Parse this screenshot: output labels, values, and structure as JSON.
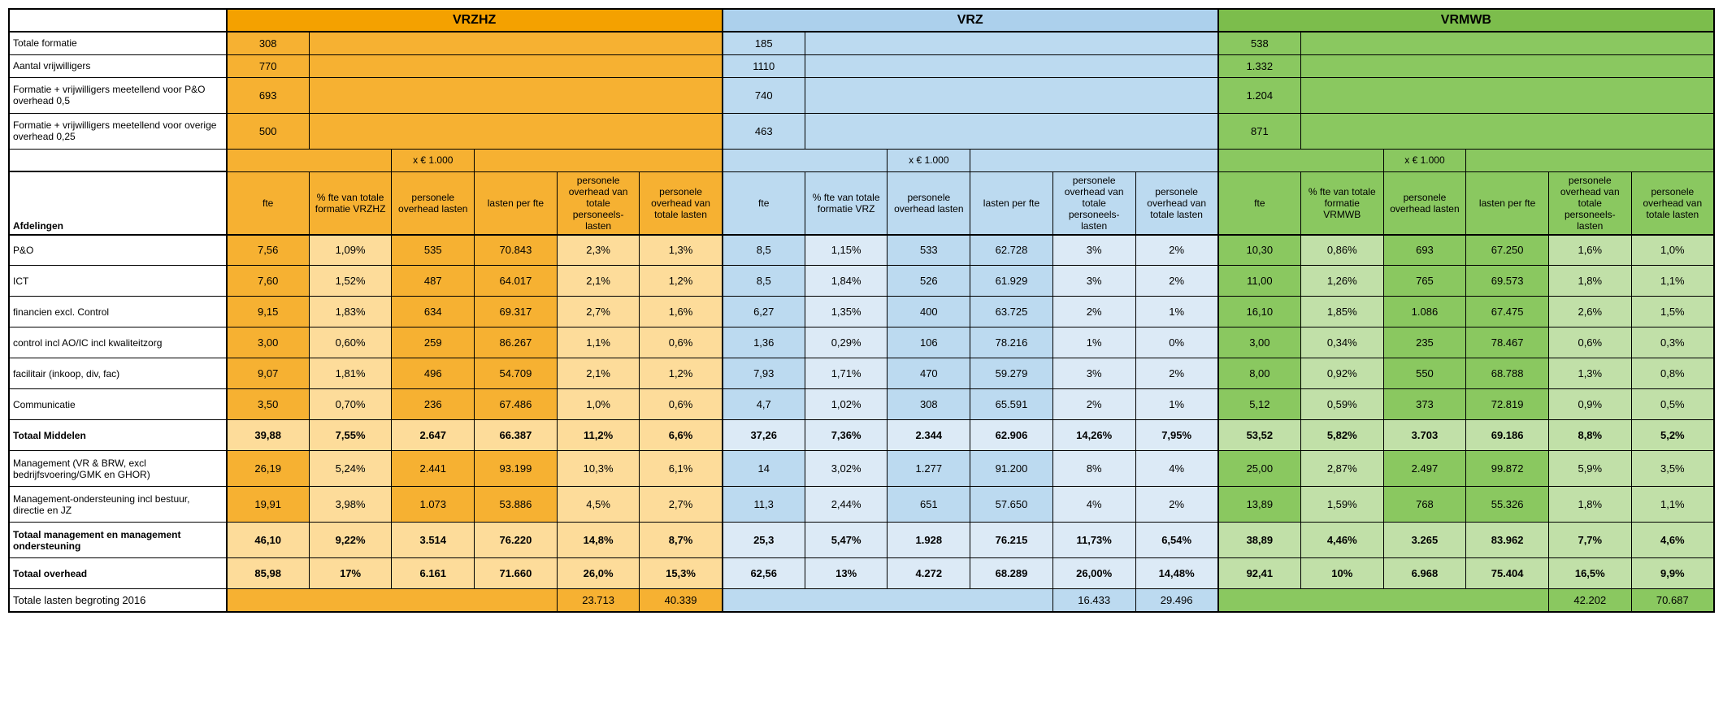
{
  "groups": [
    "VRZHZ",
    "VRZ",
    "VRMWB"
  ],
  "x1000": "x € 1.000",
  "afdelingen": "Afdelingen",
  "topRows": [
    {
      "label": "Totale formatie",
      "vals": [
        "308",
        "185",
        "538"
      ]
    },
    {
      "label": "Aantal vrijwilligers",
      "vals": [
        "770",
        "1110",
        "1.332"
      ]
    },
    {
      "label": "Formatie + vrijwilligers meetellend voor P&O overhead 0,5",
      "vals": [
        "693",
        "740",
        "1.204"
      ]
    },
    {
      "label": "Formatie + vrijwilligers meetellend voor overige overhead 0,25",
      "vals": [
        "500",
        "463",
        "871"
      ]
    }
  ],
  "colHeaders": {
    "c1": "fte",
    "c2a": "% fte van totale formatie VRZHZ",
    "c2b": "% fte van totale formatie VRZ",
    "c2c": "% fte van totale formatie VRMWB",
    "c3": "personele overhead lasten",
    "c4": "lasten per fte",
    "c5": "personele overhead van totale personeels-lasten",
    "c6": "personele overhead van totale lasten"
  },
  "rows": [
    {
      "label": "P&O",
      "bold": false,
      "light": [
        1,
        4,
        5
      ],
      "v": [
        [
          "7,56",
          "1,09%",
          "535",
          "70.843",
          "2,3%",
          "1,3%"
        ],
        [
          "8,5",
          "1,15%",
          "533",
          "62.728",
          "3%",
          "2%"
        ],
        [
          "10,30",
          "0,86%",
          "693",
          "67.250",
          "1,6%",
          "1,0%"
        ]
      ]
    },
    {
      "label": "ICT",
      "bold": false,
      "light": [
        1,
        4,
        5
      ],
      "v": [
        [
          "7,60",
          "1,52%",
          "487",
          "64.017",
          "2,1%",
          "1,2%"
        ],
        [
          "8,5",
          "1,84%",
          "526",
          "61.929",
          "3%",
          "2%"
        ],
        [
          "11,00",
          "1,26%",
          "765",
          "69.573",
          "1,8%",
          "1,1%"
        ]
      ]
    },
    {
      "label": "financien excl. Control",
      "bold": false,
      "light": [
        1,
        4,
        5
      ],
      "v": [
        [
          "9,15",
          "1,83%",
          "634",
          "69.317",
          "2,7%",
          "1,6%"
        ],
        [
          "6,27",
          "1,35%",
          "400",
          "63.725",
          "2%",
          "1%"
        ],
        [
          "16,10",
          "1,85%",
          "1.086",
          "67.475",
          "2,6%",
          "1,5%"
        ]
      ]
    },
    {
      "label": "control incl AO/IC incl kwaliteitzorg",
      "bold": false,
      "light": [
        1,
        4,
        5
      ],
      "v": [
        [
          "3,00",
          "0,60%",
          "259",
          "86.267",
          "1,1%",
          "0,6%"
        ],
        [
          "1,36",
          "0,29%",
          "106",
          "78.216",
          "1%",
          "0%"
        ],
        [
          "3,00",
          "0,34%",
          "235",
          "78.467",
          "0,6%",
          "0,3%"
        ]
      ]
    },
    {
      "label": "facilitair (inkoop, div, fac)",
      "bold": false,
      "light": [
        1,
        4,
        5
      ],
      "v": [
        [
          "9,07",
          "1,81%",
          "496",
          "54.709",
          "2,1%",
          "1,2%"
        ],
        [
          "7,93",
          "1,71%",
          "470",
          "59.279",
          "3%",
          "2%"
        ],
        [
          "8,00",
          "0,92%",
          "550",
          "68.788",
          "1,3%",
          "0,8%"
        ]
      ]
    },
    {
      "label": "Communicatie",
      "bold": false,
      "light": [
        1,
        4,
        5
      ],
      "v": [
        [
          "3,50",
          "0,70%",
          "236",
          "67.486",
          "1,0%",
          "0,6%"
        ],
        [
          "4,7",
          "1,02%",
          "308",
          "65.591",
          "2%",
          "1%"
        ],
        [
          "5,12",
          "0,59%",
          "373",
          "72.819",
          "0,9%",
          "0,5%"
        ]
      ]
    },
    {
      "label": "Totaal Middelen",
      "bold": true,
      "light": [
        0,
        1,
        2,
        3,
        4,
        5
      ],
      "v": [
        [
          "39,88",
          "7,55%",
          "2.647",
          "66.387",
          "11,2%",
          "6,6%"
        ],
        [
          "37,26",
          "7,36%",
          "2.344",
          "62.906",
          "14,26%",
          "7,95%"
        ],
        [
          "53,52",
          "5,82%",
          "3.703",
          "69.186",
          "8,8%",
          "5,2%"
        ]
      ]
    },
    {
      "label": "Management (VR & BRW, excl bedrijfsvoering/GMK en GHOR)",
      "bold": false,
      "light": [
        1,
        4,
        5
      ],
      "v": [
        [
          "26,19",
          "5,24%",
          "2.441",
          "93.199",
          "10,3%",
          "6,1%"
        ],
        [
          "14",
          "3,02%",
          "1.277",
          "91.200",
          "8%",
          "4%"
        ],
        [
          "25,00",
          "2,87%",
          "2.497",
          "99.872",
          "5,9%",
          "3,5%"
        ]
      ]
    },
    {
      "label": "Management-ondersteuning incl bestuur, directie en JZ",
      "bold": false,
      "light": [
        1,
        4,
        5
      ],
      "v": [
        [
          "19,91",
          "3,98%",
          "1.073",
          "53.886",
          "4,5%",
          "2,7%"
        ],
        [
          "11,3",
          "2,44%",
          "651",
          "57.650",
          "4%",
          "2%"
        ],
        [
          "13,89",
          "1,59%",
          "768",
          "55.326",
          "1,8%",
          "1,1%"
        ]
      ]
    },
    {
      "label": "Totaal management en management ondersteuning",
      "bold": true,
      "light": [
        0,
        1,
        2,
        3,
        4,
        5
      ],
      "v": [
        [
          "46,10",
          "9,22%",
          "3.514",
          "76.220",
          "14,8%",
          "8,7%"
        ],
        [
          "25,3",
          "5,47%",
          "1.928",
          "76.215",
          "11,73%",
          "6,54%"
        ],
        [
          "38,89",
          "4,46%",
          "3.265",
          "83.962",
          "7,7%",
          "4,6%"
        ]
      ]
    },
    {
      "label": "Totaal overhead",
      "bold": true,
      "light": [
        0,
        1,
        2,
        3,
        4,
        5
      ],
      "v": [
        [
          "85,98",
          "17%",
          "6.161",
          "71.660",
          "26,0%",
          "15,3%"
        ],
        [
          "62,56",
          "13%",
          "4.272",
          "68.289",
          "26,00%",
          "14,48%"
        ],
        [
          "92,41",
          "10%",
          "6.968",
          "75.404",
          "16,5%",
          "9,9%"
        ]
      ]
    }
  ],
  "lastRow": {
    "label": "Totale lasten begroting 2016",
    "v": [
      [
        "",
        "",
        "",
        "",
        "23.713",
        "40.339"
      ],
      [
        "",
        "",
        "",
        "",
        "16.433",
        "29.496"
      ],
      [
        "",
        "",
        "",
        "",
        "42.202",
        "70.687"
      ]
    ]
  },
  "colors": {
    "orange": "#f6b132",
    "orangeHdr": "#f4a100",
    "orangeLight": "#fddc9a",
    "blue": "#bcdaf0",
    "blueHdr": "#acd0ec",
    "blueLight": "#dceaf6",
    "green": "#8ac860",
    "greenHdr": "#7cbd4c",
    "greenLight": "#c1e0a8",
    "border": "#000000"
  },
  "font": {
    "family": "Arial",
    "baseSize": 13,
    "headerSize": 16
  }
}
